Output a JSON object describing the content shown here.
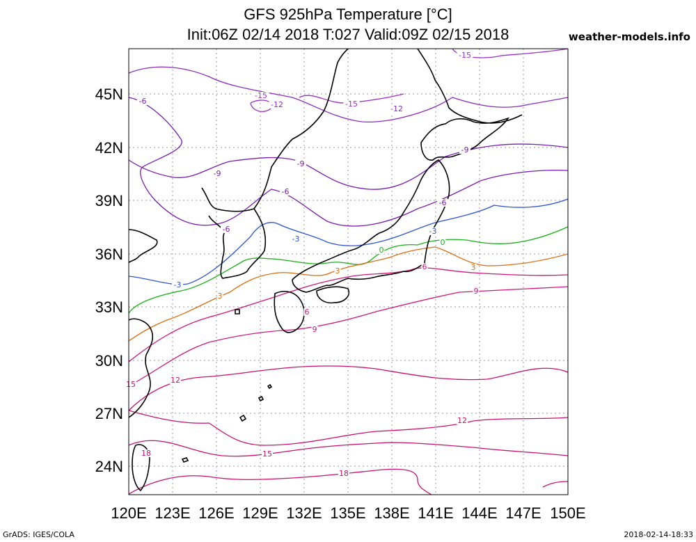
{
  "header": {
    "title_line1": "GFS 925hPa Temperature [°C]",
    "title_line2": "Init:06Z 02/14 2018 T:027 Valid:09Z 02/15 2018",
    "brand": "weather-models.info"
  },
  "footer": {
    "left": "GrADS: IGES/COLA",
    "right": "2018-02-14-18:33"
  },
  "map": {
    "lat_labels": [
      "45N",
      "42N",
      "39N",
      "36N",
      "33N",
      "30N",
      "27N",
      "24N"
    ],
    "lon_labels": [
      "120E",
      "123E",
      "126E",
      "129E",
      "132E",
      "135E",
      "138E",
      "141E",
      "144E",
      "147E",
      "150E"
    ],
    "colors": {
      "m15": "#9b2fc8",
      "m12": "#8a2cc0",
      "m9": "#7a1cb4",
      "m6": "#7a1cb4",
      "m3": "#2e55d6",
      "zero": "#16b116",
      "p3": "#dd6d12",
      "p6": "#d0157c",
      "p9": "#d0157c",
      "p12": "#c8106e",
      "p15": "#c8106e",
      "p18": "#c8106e",
      "coast": "#000000",
      "grid": "#9a9a9a"
    },
    "contour_labels": [
      {
        "text": "-15",
        "key": "m15"
      },
      {
        "text": "-15",
        "key": "m15"
      },
      {
        "text": "-15",
        "key": "m15"
      },
      {
        "text": "-12",
        "key": "m12"
      },
      {
        "text": "-12",
        "key": "m12"
      },
      {
        "text": "-9",
        "key": "m9"
      },
      {
        "text": "-9",
        "key": "m9"
      },
      {
        "text": "-9",
        "key": "m9"
      },
      {
        "text": "-6",
        "key": "m6"
      },
      {
        "text": "-6",
        "key": "m6"
      },
      {
        "text": "-6",
        "key": "m6"
      },
      {
        "text": "-6",
        "key": "m6"
      },
      {
        "text": "-3",
        "key": "m3"
      },
      {
        "text": "-3",
        "key": "m3"
      },
      {
        "text": "-3",
        "key": "m3"
      },
      {
        "text": "0",
        "key": "zero"
      },
      {
        "text": "0",
        "key": "zero"
      },
      {
        "text": "3",
        "key": "p3"
      },
      {
        "text": "3",
        "key": "p3"
      },
      {
        "text": "3",
        "key": "p3"
      },
      {
        "text": "6",
        "key": "p6"
      },
      {
        "text": "6",
        "key": "p6"
      },
      {
        "text": "9",
        "key": "p9"
      },
      {
        "text": "9",
        "key": "p9"
      },
      {
        "text": "12",
        "key": "p12"
      },
      {
        "text": "12",
        "key": "p12"
      },
      {
        "text": "15",
        "key": "p15"
      },
      {
        "text": "15",
        "key": "p15"
      },
      {
        "text": "18",
        "key": "p18"
      },
      {
        "text": "18",
        "key": "p18"
      }
    ]
  }
}
